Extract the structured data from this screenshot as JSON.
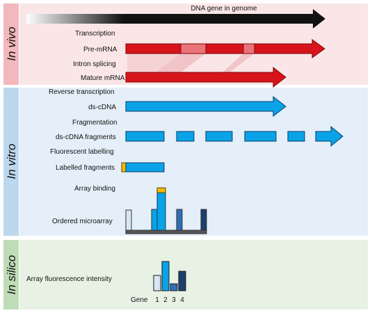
{
  "sections": {
    "in_vivo": {
      "label": "In vivo",
      "side_color": "#f2b8bd",
      "bg_color": "#fae6e7",
      "gene_label": "DNA gene in genome",
      "steps": {
        "transcription": "Transcription",
        "pre_mrna": "Pre-mRNA",
        "intron_splicing": "Intron splicing",
        "mature_mrna": "Mature mRNA"
      }
    },
    "in_vitro": {
      "label": "In vitro",
      "side_color": "#bcd8ef",
      "bg_color": "#e5eff9",
      "steps": {
        "reverse_transcription": "Reverse transcription",
        "ds_cdna": "ds-cDNA",
        "fragmentation": "Fragmentation",
        "ds_cdna_fragments": "ds-cDNA fragments",
        "fluorescent_labelling": "Fluorescent labelling",
        "labelled_fragments": "Labelled fragments",
        "array_binding": "Array binding",
        "ordered_microarray": "Ordered microarray"
      }
    },
    "in_silico": {
      "label": "In silico",
      "side_color": "#bfdcb6",
      "bg_color": "#e8f2e4",
      "steps": {
        "array_intensity": "Array fluorescence intensity",
        "gene_axis_label": "Gene",
        "gene_numbers": [
          "1",
          "2",
          "3",
          "4"
        ]
      }
    }
  },
  "colors": {
    "dna": "#111111",
    "mrna": "#d7141a",
    "intron": "#e97378",
    "cdna": "#0aa3e8",
    "label_tag": "#f5b800",
    "gene1": "#d7e6f5",
    "gene2": "#0aa3e8",
    "gene3": "#2f6fb5",
    "gene4": "#1c3f6e"
  }
}
